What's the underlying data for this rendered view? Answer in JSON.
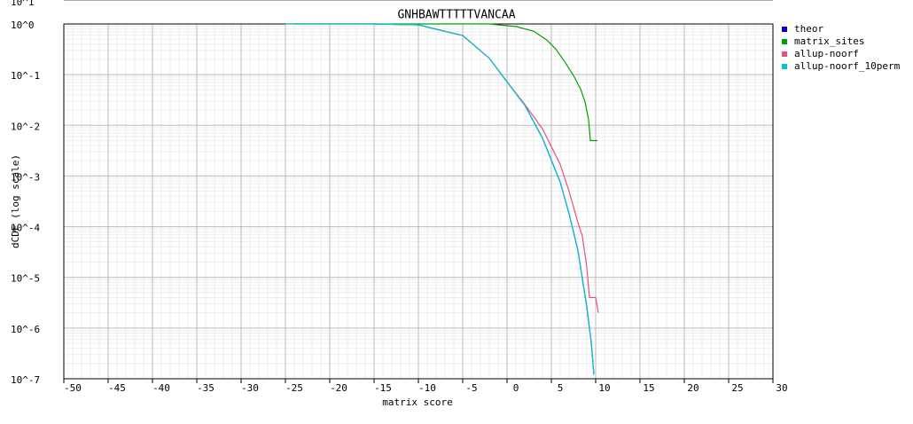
{
  "chart_data": {
    "type": "line",
    "title": "GNHBAWTTTTTVANCAA",
    "x_label": "matrix score",
    "y_label": "dCDF (log scale)",
    "cropped_label": "10^1",
    "xlim": [
      -50,
      30
    ],
    "xticks": [
      -50,
      -45,
      -40,
      -35,
      -30,
      -25,
      -20,
      -15,
      -10,
      -5,
      0,
      5,
      10,
      15,
      20,
      25,
      30
    ],
    "ylim": [
      1e-07,
      1
    ],
    "log_y": true,
    "grid": true,
    "legend": "right",
    "yticks": [
      {
        "value": 1,
        "label": "10^0"
      },
      {
        "value": 0.1,
        "label": "10^-1"
      },
      {
        "value": 0.01,
        "label": "10^-2"
      },
      {
        "value": 0.001,
        "label": "10^-3"
      },
      {
        "value": 0.0001,
        "label": "10^-4"
      },
      {
        "value": 1e-05,
        "label": "10^-5"
      },
      {
        "value": 1e-06,
        "label": "10^-6"
      },
      {
        "value": 1e-07,
        "label": "10^-7"
      }
    ],
    "series": [
      {
        "name": "theor",
        "color": "#0000cc",
        "x": [
          -15,
          -10,
          -5,
          -2,
          0,
          2,
          4,
          6,
          7,
          8,
          9,
          9.5,
          9.8
        ],
        "values": [
          1,
          0.96,
          0.59,
          0.21,
          0.072,
          0.025,
          0.0056,
          0.00076,
          0.00018,
          3.4e-05,
          2.6e-06,
          5.2e-07,
          1.2e-07
        ]
      },
      {
        "name": "matrix_sites",
        "color": "#00a000",
        "x": [
          -24,
          -2,
          -1,
          1,
          3,
          4.5,
          5.5,
          6.5,
          7.5,
          8.3,
          8.8,
          9.2,
          9.4,
          10.2
        ],
        "values": [
          1,
          1,
          0.96,
          0.89,
          0.72,
          0.48,
          0.32,
          0.18,
          0.096,
          0.052,
          0.029,
          0.013,
          0.005,
          0.005
        ]
      },
      {
        "name": "allup-noorf",
        "color": "#e8507a",
        "x": [
          -25,
          -15,
          -10,
          -5,
          -2,
          0,
          2,
          4,
          6,
          7,
          8,
          8.5,
          9,
          9.3,
          10,
          10.3
        ],
        "values": [
          1,
          1,
          0.96,
          0.59,
          0.21,
          0.072,
          0.026,
          0.0085,
          0.0017,
          0.0005,
          0.00012,
          6.5e-05,
          1.6e-05,
          4e-06,
          4e-06,
          2e-06
        ]
      },
      {
        "name": "allup-noorf_10perm",
        "color": "#00c8c8",
        "x": [
          -25,
          -15,
          -10,
          -5,
          -2,
          0,
          2,
          4,
          6,
          7,
          8,
          9,
          9.5,
          9.8
        ],
        "values": [
          1,
          1,
          0.96,
          0.59,
          0.21,
          0.072,
          0.025,
          0.0056,
          0.00076,
          0.00018,
          3.4e-05,
          2.6e-06,
          5.2e-07,
          1.2e-07
        ]
      }
    ]
  }
}
